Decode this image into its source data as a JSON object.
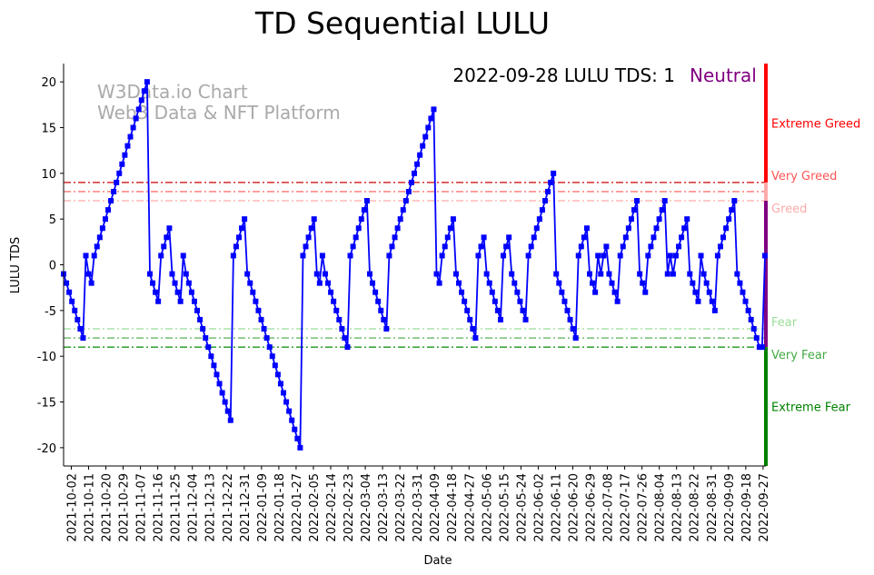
{
  "chart_data": {
    "type": "line",
    "title": "TD Sequential LULU",
    "xlabel": "Date",
    "ylabel": "LULU TDS",
    "ylim": [
      -22,
      22
    ],
    "yticks": [
      -20,
      -15,
      -10,
      -5,
      0,
      5,
      10,
      15,
      20
    ],
    "x_start": "2021-09-28",
    "x_end": "2022-09-28",
    "xticks": [
      "2021-10-02",
      "2021-10-11",
      "2021-10-20",
      "2021-10-29",
      "2021-11-07",
      "2021-11-16",
      "2021-11-25",
      "2021-12-04",
      "2021-12-13",
      "2021-12-22",
      "2021-12-31",
      "2022-01-09",
      "2022-01-18",
      "2022-01-27",
      "2022-02-05",
      "2022-02-14",
      "2022-02-23",
      "2022-03-04",
      "2022-03-13",
      "2022-03-22",
      "2022-03-31",
      "2022-04-09",
      "2022-04-18",
      "2022-04-27",
      "2022-05-06",
      "2022-05-15",
      "2022-05-24",
      "2022-06-02",
      "2022-06-11",
      "2022-06-20",
      "2022-06-29",
      "2022-07-08",
      "2022-07-17",
      "2022-07-26",
      "2022-08-04",
      "2022-08-13",
      "2022-08-22",
      "2022-08-31",
      "2022-09-09",
      "2022-09-18",
      "2022-09-27"
    ],
    "series": [
      {
        "name": "LULU TDS",
        "color": "#0000ff",
        "values": [
          -1,
          -2,
          -3,
          -4,
          -5,
          -6,
          -7,
          -8,
          1,
          -1,
          -2,
          1,
          2,
          3,
          4,
          5,
          6,
          7,
          8,
          9,
          10,
          11,
          12,
          13,
          14,
          15,
          16,
          17,
          18,
          19,
          20,
          -1,
          -2,
          -3,
          -4,
          1,
          2,
          3,
          4,
          -1,
          -2,
          -3,
          -4,
          1,
          -1,
          -2,
          -3,
          -4,
          -5,
          -6,
          -7,
          -8,
          -9,
          -10,
          -11,
          -12,
          -13,
          -14,
          -15,
          -16,
          -17,
          1,
          2,
          3,
          4,
          5,
          -1,
          -2,
          -3,
          -4,
          -5,
          -6,
          -7,
          -8,
          -9,
          -10,
          -11,
          -12,
          -13,
          -14,
          -15,
          -16,
          -17,
          -18,
          -19,
          -20,
          1,
          2,
          3,
          4,
          5,
          -1,
          -2,
          1,
          -1,
          -2,
          -3,
          -4,
          -5,
          -6,
          -7,
          -8,
          -9,
          1,
          2,
          3,
          4,
          5,
          6,
          7,
          -1,
          -2,
          -3,
          -4,
          -5,
          -6,
          -7,
          1,
          2,
          3,
          4,
          5,
          6,
          7,
          8,
          9,
          10,
          11,
          12,
          13,
          14,
          15,
          16,
          17,
          -1,
          -2,
          1,
          2,
          3,
          4,
          5,
          -1,
          -2,
          -3,
          -4,
          -5,
          -6,
          -7,
          -8,
          1,
          2,
          3,
          -1,
          -2,
          -3,
          -4,
          -5,
          -6,
          1,
          2,
          3,
          -1,
          -2,
          -3,
          -4,
          -5,
          -6,
          1,
          2,
          3,
          4,
          5,
          6,
          7,
          8,
          9,
          10,
          -1,
          -2,
          -3,
          -4,
          -5,
          -6,
          -7,
          -8,
          1,
          2,
          3,
          4,
          -1,
          -2,
          -3,
          1,
          -1,
          1,
          2,
          -1,
          -2,
          -3,
          -4,
          1,
          2,
          3,
          4,
          5,
          6,
          7,
          -1,
          -2,
          -3,
          1,
          2,
          3,
          4,
          5,
          6,
          7,
          -1,
          1,
          -1,
          1,
          2,
          3,
          4,
          5,
          -1,
          -2,
          -3,
          -4,
          1,
          -1,
          -2,
          -3,
          -4,
          -5,
          1,
          2,
          3,
          4,
          5,
          6,
          7,
          -1,
          -2,
          -3,
          -4,
          -5,
          -6,
          -7,
          -8,
          -9,
          -9,
          1
        ]
      }
    ],
    "reference_lines": [
      {
        "label": "Very Greed",
        "value": 9,
        "color": "#cc0000"
      },
      {
        "label": "",
        "value": 8,
        "color": "#ff5555"
      },
      {
        "label": "Greed",
        "value": 7,
        "color": "#ffaaaa"
      },
      {
        "label": "Fear",
        "value": -7,
        "color": "#99dd99"
      },
      {
        "label": "",
        "value": -8,
        "color": "#44aa44"
      },
      {
        "label": "Very Fear",
        "value": -9,
        "color": "#008800"
      }
    ],
    "zone_labels": [
      {
        "label": "Extreme Greed",
        "value": 15.5,
        "color": "#ff0000"
      },
      {
        "label": "Very Greed",
        "value": 8.5,
        "color": "#ff5555"
      },
      {
        "label": "Greed",
        "value": 7.5,
        "color": "#ffaaaa"
      },
      {
        "label": "Fear",
        "value": -7.5,
        "color": "#99dd99"
      },
      {
        "label": "Very Fear",
        "value": -8.5,
        "color": "#44aa44"
      },
      {
        "label": "Extreme Fear",
        "value": -15.5,
        "color": "#008000"
      }
    ],
    "zone_bar": [
      {
        "from": 9,
        "to": 22,
        "color": "#ff0000"
      },
      {
        "from": 7,
        "to": 9,
        "color": "#ffaaaa"
      },
      {
        "from": -9,
        "to": 7,
        "color": "#800080"
      },
      {
        "from": -22,
        "to": -9,
        "color": "#008000"
      }
    ],
    "annotation": "2022-09-28 LULU TDS: 1",
    "status": "Neutral",
    "status_color": "#800080",
    "watermark": [
      "W3Data.io Chart",
      "Web3 Data & NFT Platform"
    ]
  }
}
